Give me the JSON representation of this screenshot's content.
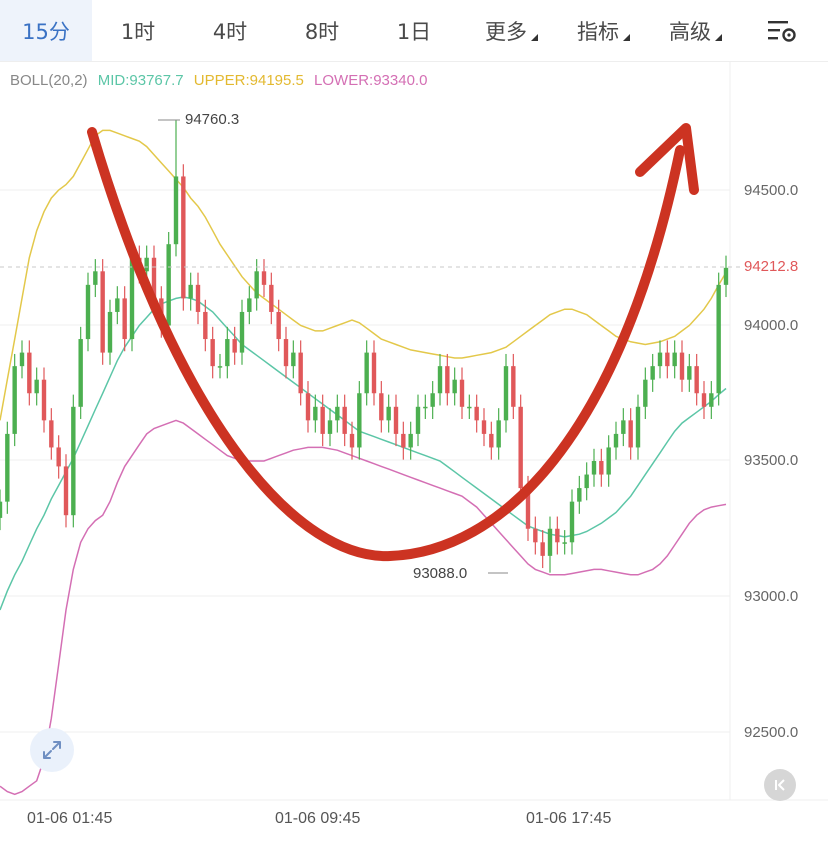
{
  "tabs": [
    {
      "label": "15分",
      "active": true,
      "dropdown": false
    },
    {
      "label": "1时",
      "active": false,
      "dropdown": false
    },
    {
      "label": "4时",
      "active": false,
      "dropdown": false
    },
    {
      "label": "8时",
      "active": false,
      "dropdown": false
    },
    {
      "label": "1日",
      "active": false,
      "dropdown": false
    },
    {
      "label": "更多",
      "active": false,
      "dropdown": true
    },
    {
      "label": "指标",
      "active": false,
      "dropdown": true
    },
    {
      "label": "高级",
      "active": false,
      "dropdown": true
    }
  ],
  "settings_icon": "chart-settings-icon",
  "indicator": {
    "name": "BOLL(20,2)",
    "mid": "MID:93767.7",
    "upper": "UPPER:94195.5",
    "lower": "LOWER:93340.0"
  },
  "colors": {
    "accent": "#3a72c4",
    "up_candle": "#4caf50",
    "down_candle": "#e0585a",
    "mid_line": "#5cc6a7",
    "upper_line": "#e3c84a",
    "lower_line": "#d46fb4",
    "arrow": "#cc3322",
    "neutral_text": "#888888"
  },
  "annotations": {
    "high": "94760.3",
    "low": "93088.0",
    "last_price": "94212.8"
  },
  "icons": {
    "expand": "expand-arrows-icon",
    "reset": "scroll-to-latest-icon"
  },
  "chart_data": {
    "type": "candlestick",
    "x_ticks": [
      "01-06 01:45",
      "01-06 09:45",
      "01-06 17:45"
    ],
    "y_ticks": [
      "94500.0",
      "94000.0",
      "93500.0",
      "93000.0",
      "92500.0"
    ],
    "ylim": [
      92300,
      94950
    ],
    "grid": true,
    "current_price": 94212.8,
    "high_label": 94760.3,
    "low_label": 93088.0,
    "closes": [
      93350,
      93600,
      93850,
      93900,
      93750,
      93800,
      93650,
      93550,
      93480,
      93300,
      93700,
      93950,
      94150,
      94200,
      93900,
      94050,
      94100,
      93950,
      94250,
      94200,
      94250,
      94100,
      94000,
      94300,
      94550,
      94100,
      94150,
      94050,
      93950,
      93850,
      93850,
      93950,
      93900,
      94050,
      94100,
      94200,
      94150,
      94050,
      93950,
      93850,
      93900,
      93750,
      93650,
      93700,
      93600,
      93650,
      93700,
      93600,
      93550,
      93750,
      93900,
      93750,
      93650,
      93700,
      93600,
      93550,
      93600,
      93700,
      93700,
      93750,
      93850,
      93750,
      93800,
      93700,
      93700,
      93650,
      93600,
      93550,
      93650,
      93850,
      93700,
      93400,
      93250,
      93200,
      93150,
      93250,
      93200,
      93200,
      93350,
      93400,
      93450,
      93500,
      93450,
      93550,
      93600,
      93650,
      93550,
      93700,
      93800,
      93850,
      93900,
      93850,
      93900,
      93800,
      93850,
      93750,
      93700,
      93750,
      94150,
      94212.8
    ],
    "series": [
      {
        "name": "MID",
        "values": [
          92950,
          93020,
          93080,
          93130,
          93190,
          93250,
          93300,
          93360,
          93410,
          93460,
          93510,
          93570,
          93630,
          93690,
          93750,
          93810,
          93870,
          93920,
          93960,
          94000,
          94030,
          94060,
          94080,
          94090,
          94100,
          94105,
          94100,
          94090,
          94070,
          94050,
          94020,
          93990,
          93960,
          93930,
          93910,
          93890,
          93870,
          93850,
          93830,
          93810,
          93790,
          93770,
          93750,
          93730,
          93710,
          93690,
          93670,
          93650,
          93630,
          93610,
          93600,
          93590,
          93580,
          93570,
          93560,
          93550,
          93540,
          93530,
          93520,
          93510,
          93500,
          93480,
          93460,
          93440,
          93420,
          93400,
          93380,
          93360,
          93340,
          93320,
          93300,
          93280,
          93260,
          93250,
          93240,
          93230,
          93225,
          93220,
          93225,
          93230,
          93240,
          93255,
          93270,
          93290,
          93310,
          93340,
          93370,
          93410,
          93450,
          93490,
          93530,
          93570,
          93610,
          93640,
          93660,
          93680,
          93700,
          93720,
          93745,
          93767.7
        ]
      },
      {
        "name": "UPPER",
        "values": [
          93650,
          93800,
          93950,
          94100,
          94250,
          94350,
          94420,
          94470,
          94500,
          94520,
          94550,
          94600,
          94650,
          94700,
          94720,
          94720,
          94710,
          94700,
          94690,
          94680,
          94660,
          94630,
          94600,
          94570,
          94540,
          94510,
          94470,
          94440,
          94400,
          94350,
          94300,
          94260,
          94220,
          94180,
          94150,
          94120,
          94100,
          94080,
          94060,
          94040,
          94020,
          94000,
          93990,
          93980,
          93980,
          93990,
          94000,
          94010,
          94020,
          94010,
          93990,
          93970,
          93950,
          93940,
          93930,
          93920,
          93910,
          93905,
          93900,
          93895,
          93890,
          93885,
          93880,
          93880,
          93885,
          93890,
          93895,
          93900,
          93910,
          93920,
          93940,
          93960,
          93980,
          94000,
          94020,
          94040,
          94050,
          94060,
          94060,
          94050,
          94040,
          94020,
          94000,
          93980,
          93960,
          93950,
          93940,
          93935,
          93930,
          93935,
          93940,
          93950,
          93960,
          93980,
          94000,
          94030,
          94060,
          94100,
          94150,
          94195.5
        ]
      },
      {
        "name": "LOWER",
        "values": [
          92300,
          92280,
          92270,
          92280,
          92300,
          92320,
          92400,
          92550,
          92750,
          92950,
          93100,
          93200,
          93250,
          93280,
          93300,
          93350,
          93420,
          93480,
          93520,
          93560,
          93600,
          93620,
          93630,
          93640,
          93650,
          93640,
          93620,
          93600,
          93580,
          93560,
          93540,
          93520,
          93510,
          93500,
          93500,
          93500,
          93500,
          93510,
          93520,
          93530,
          93540,
          93545,
          93550,
          93550,
          93550,
          93545,
          93540,
          93530,
          93520,
          93510,
          93500,
          93490,
          93480,
          93470,
          93460,
          93450,
          93440,
          93430,
          93420,
          93410,
          93400,
          93390,
          93380,
          93370,
          93350,
          93330,
          93300,
          93270,
          93240,
          93210,
          93180,
          93150,
          93120,
          93100,
          93090,
          93080,
          93080,
          93080,
          93085,
          93090,
          93095,
          93100,
          93100,
          93095,
          93090,
          93085,
          93080,
          93080,
          93090,
          93100,
          93120,
          93150,
          93190,
          93230,
          93270,
          93300,
          93320,
          93330,
          93335,
          93340.0
        ]
      }
    ]
  }
}
